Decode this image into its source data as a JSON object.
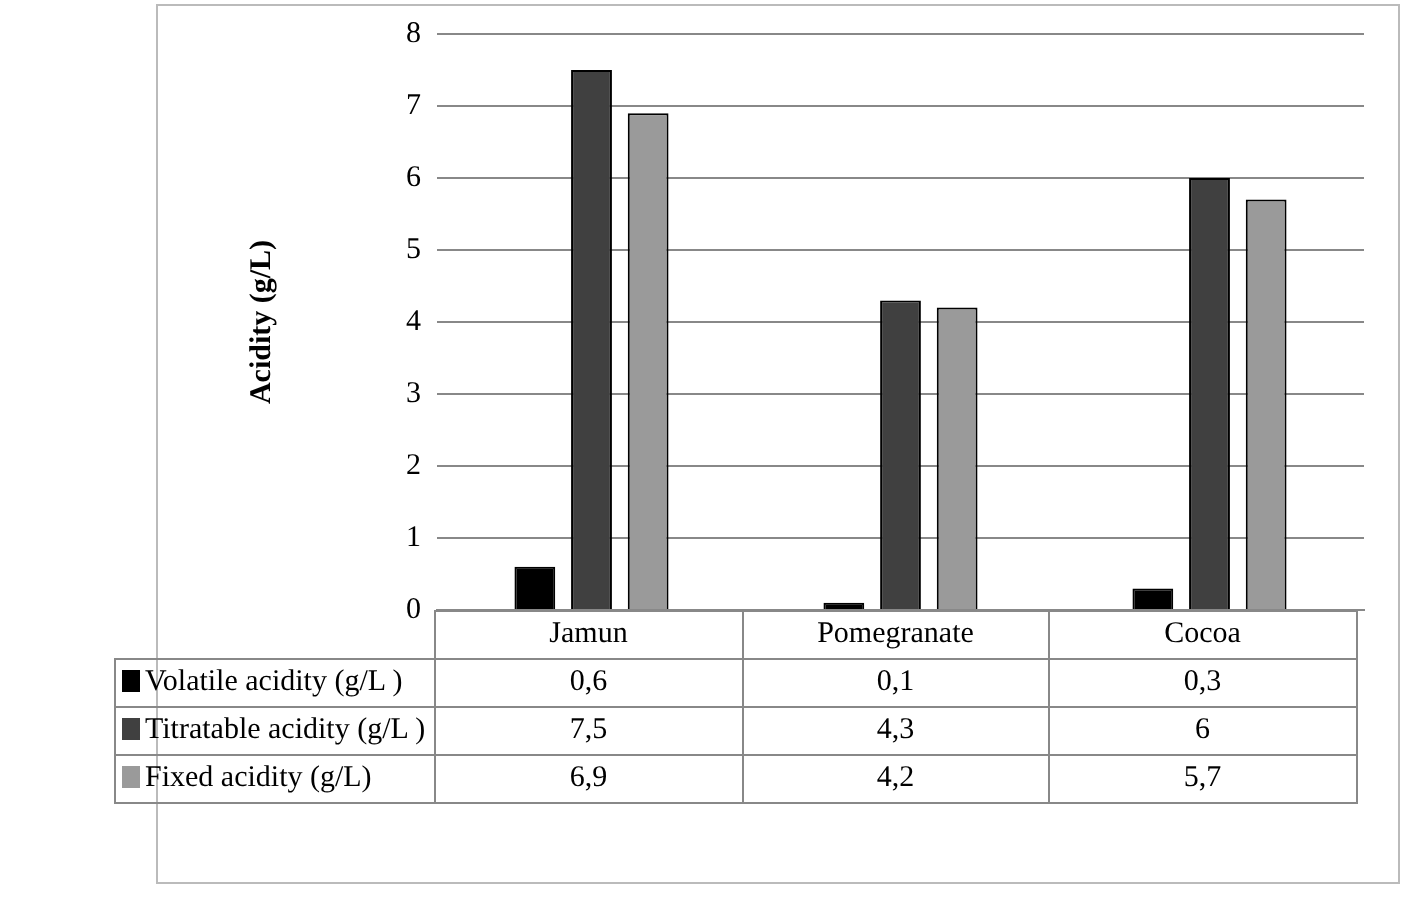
{
  "chart_data": {
    "type": "bar",
    "ylabel": "Acidity (g/L)",
    "categories": [
      "Jamun",
      "Pomegranate",
      "Cocoa"
    ],
    "series": [
      {
        "name": "Volatile acidity (g/L )",
        "color": "#000000",
        "values": [
          0.6,
          0.1,
          0.3
        ],
        "value_labels": [
          "0,6",
          "0,1",
          "0,3"
        ]
      },
      {
        "name": "Titratable acidity (g/L )",
        "color": "#404040",
        "values": [
          7.5,
          4.3,
          6
        ],
        "value_labels": [
          "7,5",
          "4,3",
          "6"
        ]
      },
      {
        "name": "Fixed acidity (g/L)",
        "color": "#9a9a9a",
        "values": [
          6.9,
          4.2,
          5.7
        ],
        "value_labels": [
          "6,9",
          "4,2",
          "5,7"
        ]
      }
    ],
    "ylim": [
      0,
      8
    ],
    "yticks": [
      0,
      1,
      2,
      3,
      4,
      5,
      6,
      7,
      8
    ],
    "grid": "y",
    "legend": "bottom left"
  }
}
